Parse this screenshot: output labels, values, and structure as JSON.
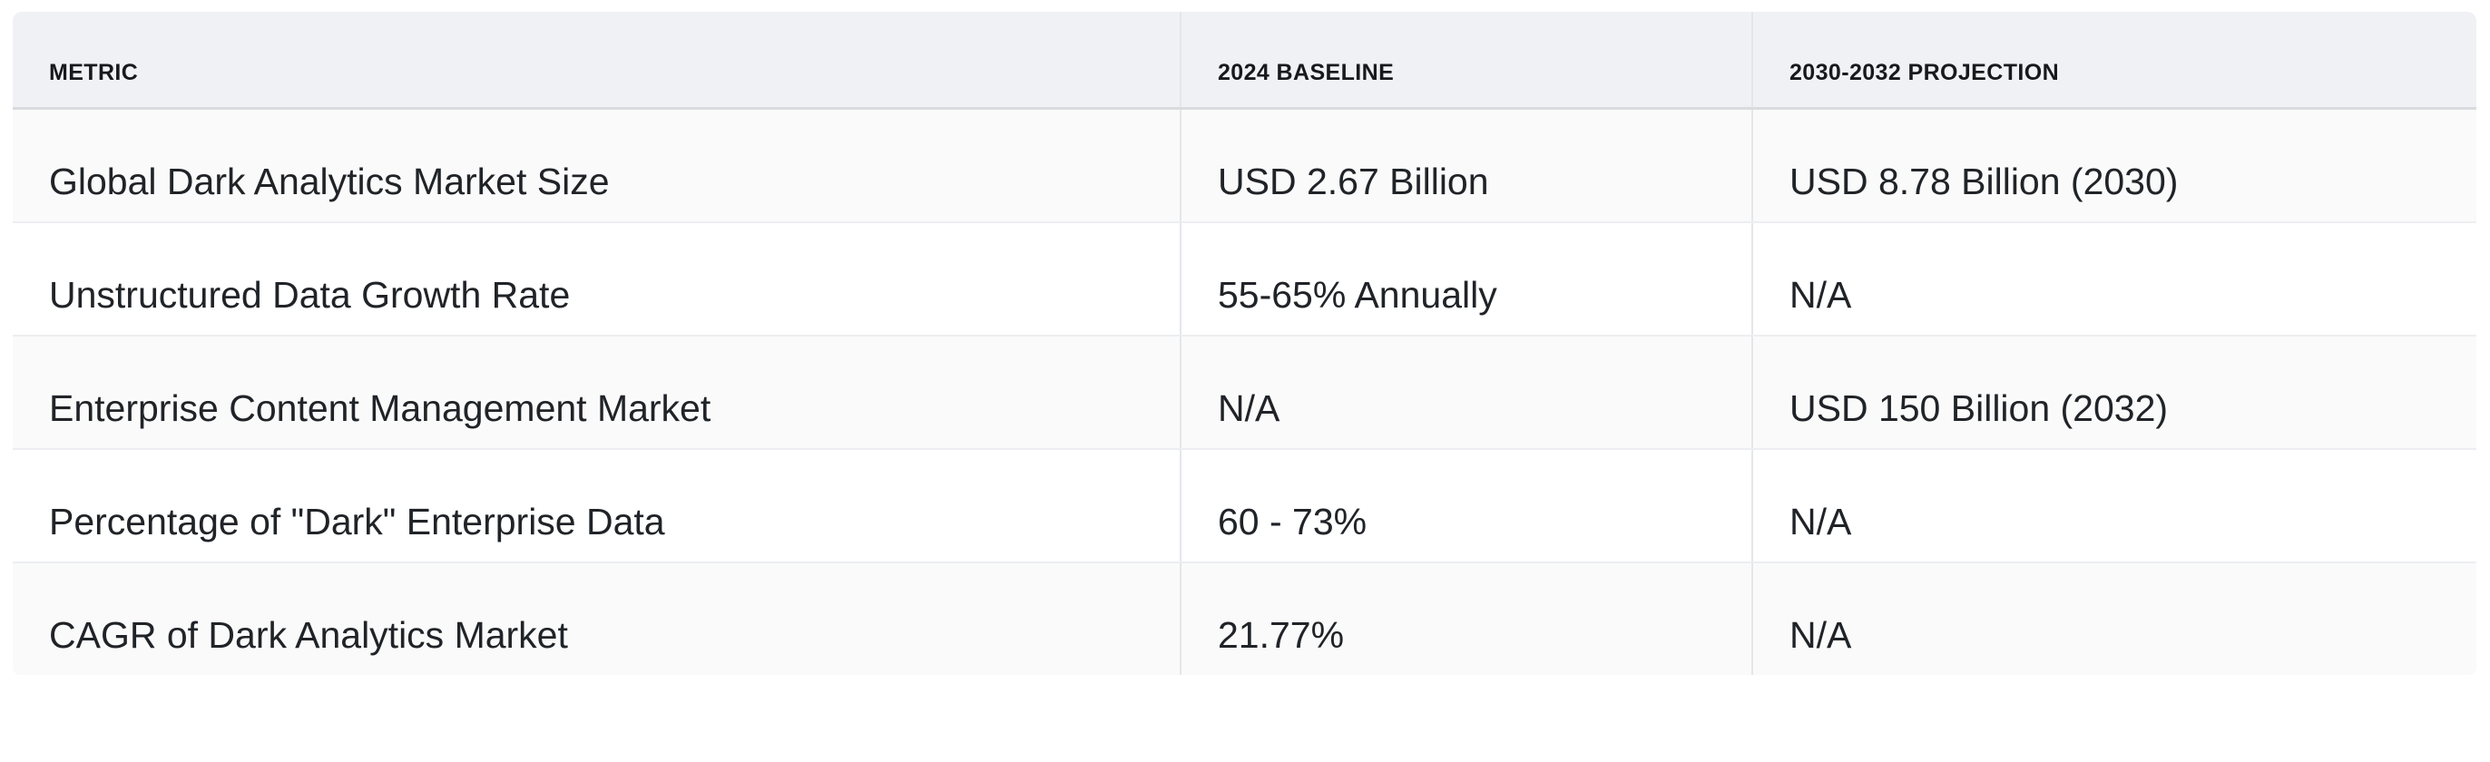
{
  "table": {
    "columns": [
      {
        "id": "metric",
        "label": "METRIC"
      },
      {
        "id": "baseline",
        "label": "2024 BASELINE"
      },
      {
        "id": "projection",
        "label": "2030-2032 PROJECTION"
      }
    ],
    "rows": [
      {
        "metric": "Global Dark Analytics Market Size",
        "baseline": "USD 2.67 Billion",
        "projection": "USD 8.78 Billion (2030)"
      },
      {
        "metric": "Unstructured Data Growth Rate",
        "baseline": "55-65% Annually",
        "projection": "N/A"
      },
      {
        "metric": "Enterprise Content Management Market",
        "baseline": "N/A",
        "projection": "USD 150 Billion (2032)"
      },
      {
        "metric": "Percentage of \"Dark\" Enterprise Data",
        "baseline": "60 - 73%",
        "projection": "N/A"
      },
      {
        "metric": "CAGR of Dark Analytics Market",
        "baseline": "21.77%",
        "projection": "N/A"
      }
    ]
  },
  "colors": {
    "page_bg": "#ffffff",
    "header_bg": "#f0f1f4",
    "header_border": "#d9dbdf",
    "header_text": "#17191c",
    "row_bg": "#ffffff",
    "row_alt_bg": "#fafafa",
    "row_divider": "#eceef1",
    "column_divider": "#e4e6ea",
    "body_text": "#202327"
  }
}
